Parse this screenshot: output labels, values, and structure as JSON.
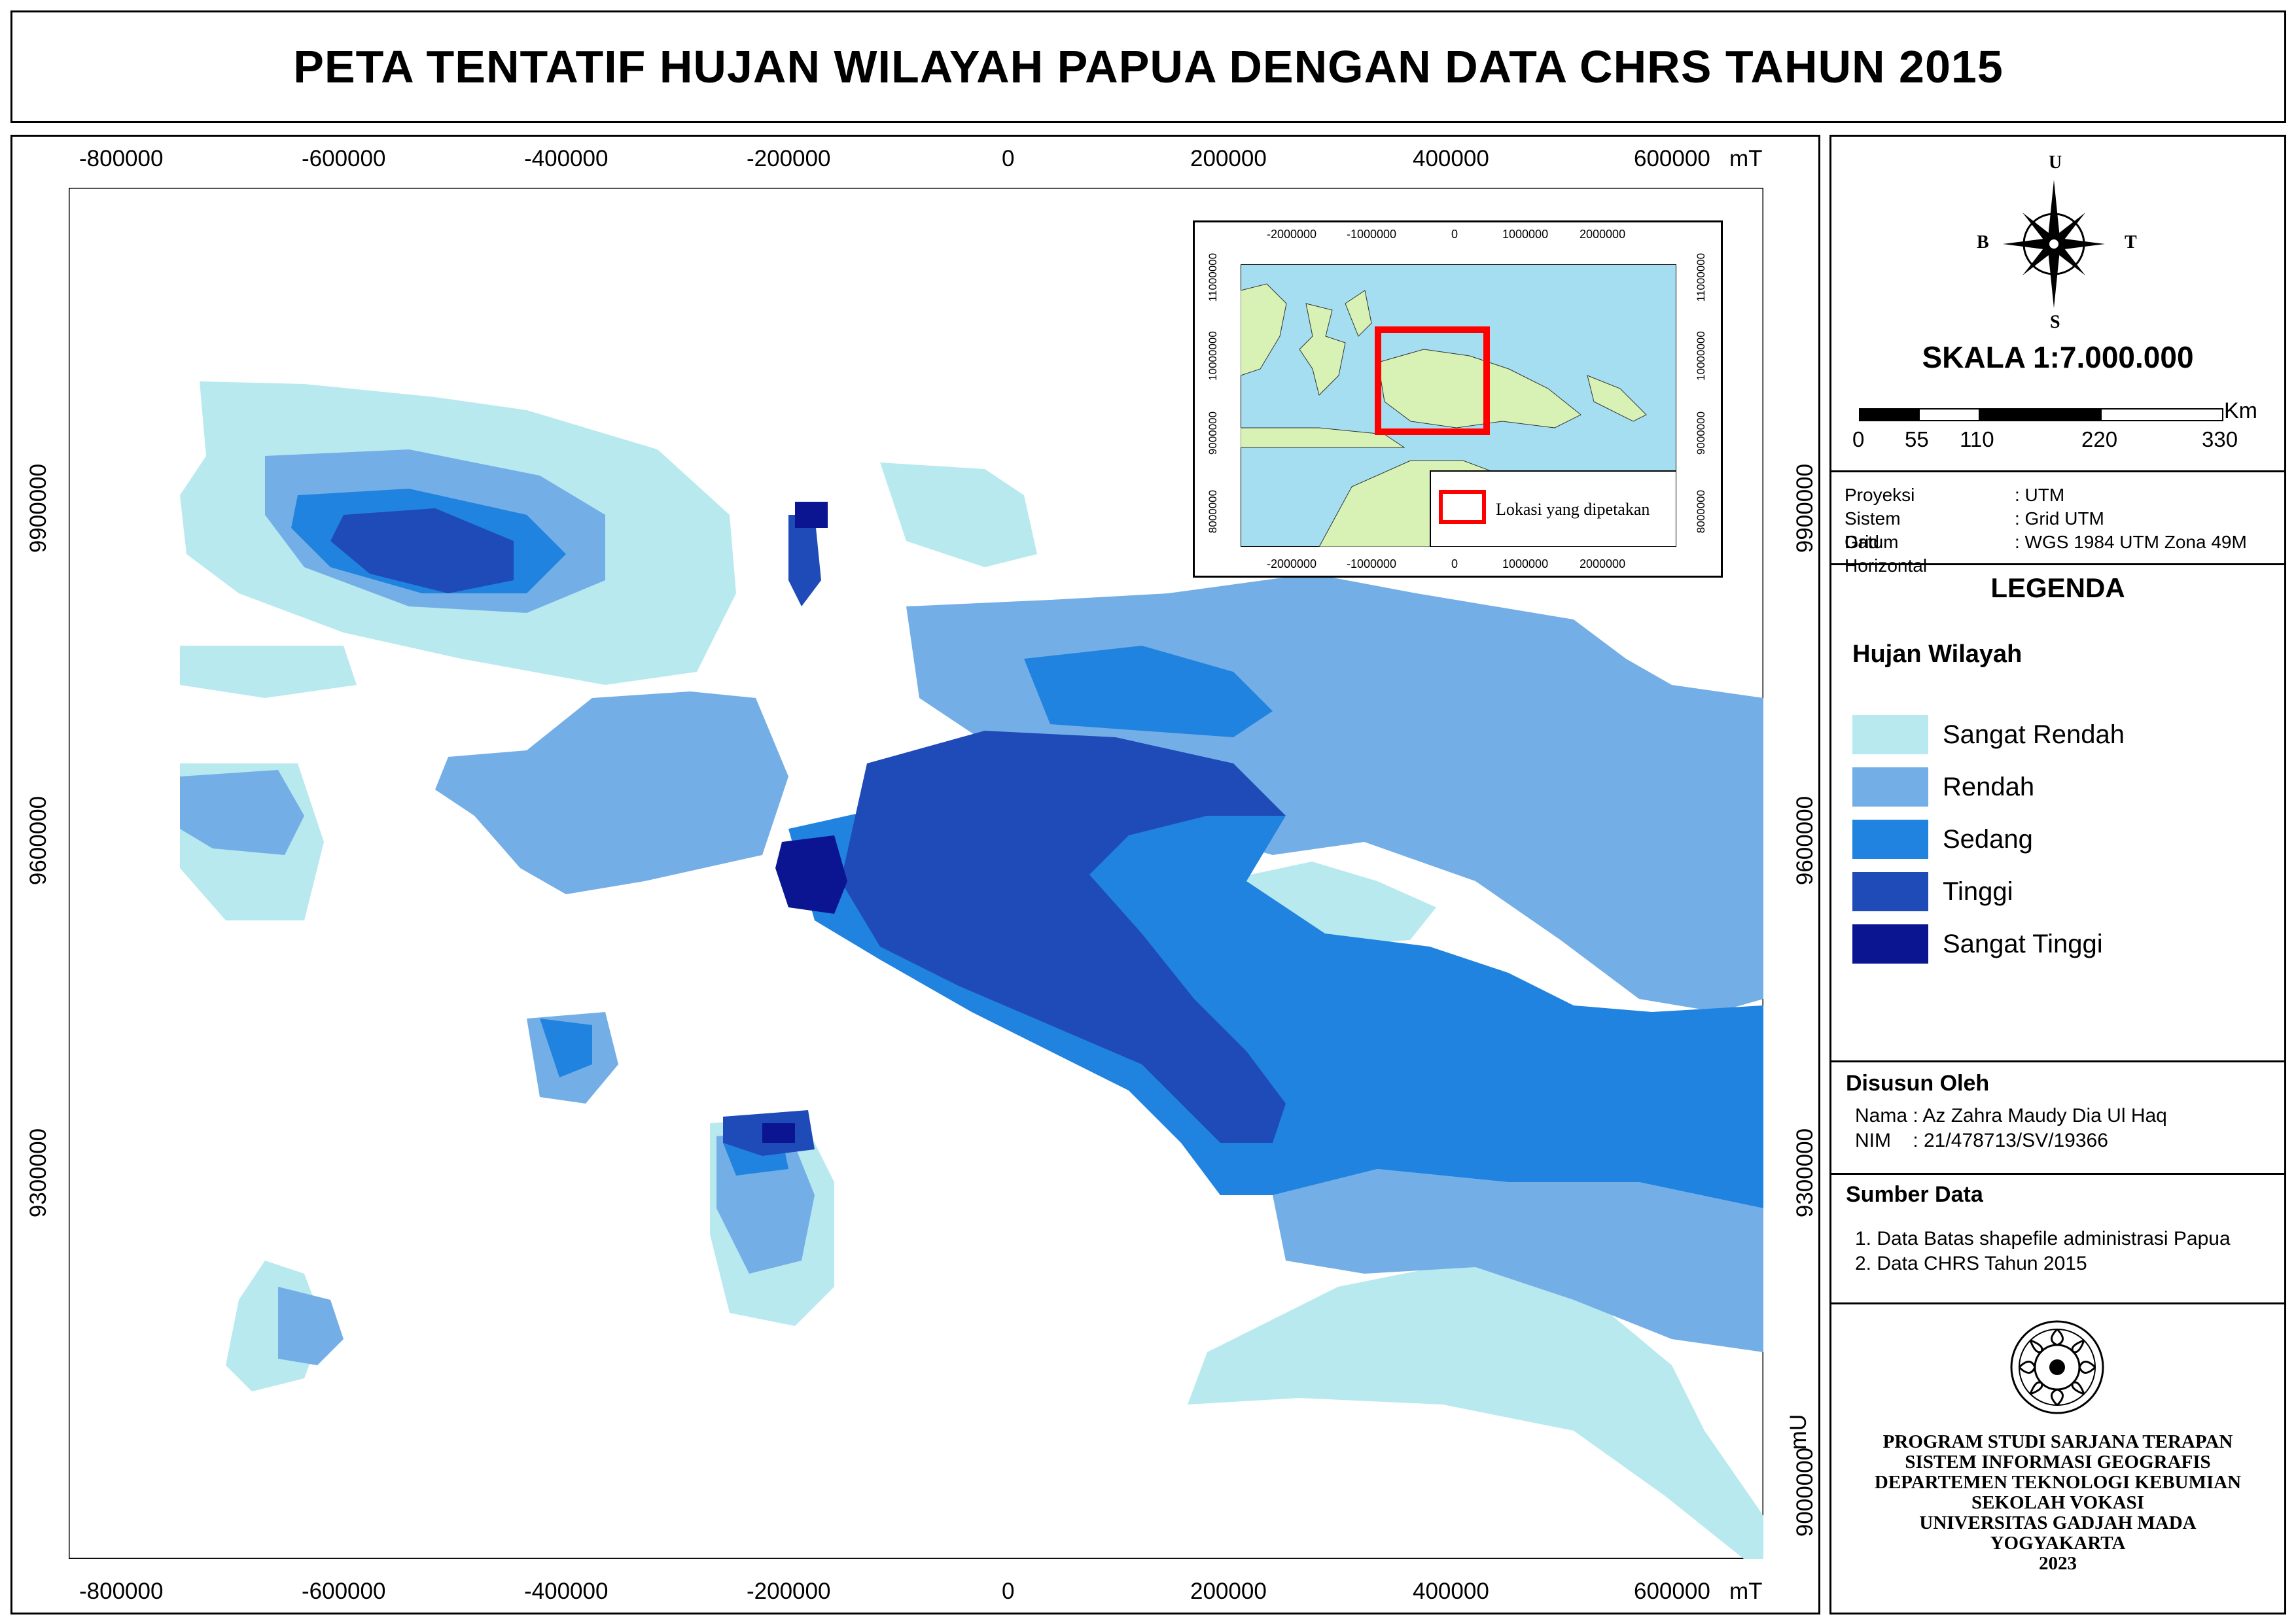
{
  "title": "PETA TENTATIF HUJAN WILAYAH PAPUA DENGAN DATA CHRS TAHUN 2015",
  "map": {
    "x_ticks": [
      "-800000",
      "-600000",
      "-400000",
      "-200000",
      "0",
      "200000",
      "400000",
      "600000"
    ],
    "x_unit": "mT",
    "y_ticks": [
      "9900000",
      "9600000",
      "9300000",
      "9000000"
    ],
    "y_unit": "mU",
    "colors": {
      "sangat_rendah": "#b7e9ef",
      "rendah": "#74aee6",
      "sedang": "#2083e0",
      "tinggi": "#1f4bb8",
      "sangat_tinggi": "#0b1591"
    }
  },
  "inset": {
    "x_ticks": [
      "-2000000",
      "-1000000",
      "0",
      "1000000",
      "2000000"
    ],
    "y_ticks": [
      "11000000",
      "10000000",
      "9000000",
      "8000000"
    ],
    "legend_label": "Lokasi yang dipetakan",
    "sea_color": "#a6def1",
    "land_color": "#d7f2b4",
    "frame_color": "#ff0000"
  },
  "compass": {
    "north": "U",
    "south": "S",
    "west": "B",
    "east": "T"
  },
  "scale": {
    "text": "SKALA 1:7.000.000",
    "unit": "Km",
    "labels": [
      "0",
      "55",
      "110",
      "220",
      "330"
    ]
  },
  "projection": {
    "rows": [
      {
        "key": "Proyeksi",
        "value": ": UTM"
      },
      {
        "key": "Sistem Grid",
        "value": ": Grid UTM"
      },
      {
        "key": "Datum Horizontal",
        "value": ": WGS 1984 UTM Zona 49M"
      }
    ]
  },
  "legend": {
    "heading": "LEGENDA",
    "subheading": "Hujan Wilayah",
    "items": [
      {
        "label": "Sangat Rendah",
        "color": "#b7e9ef"
      },
      {
        "label": "Rendah",
        "color": "#74aee6"
      },
      {
        "label": "Sedang",
        "color": "#2083e0"
      },
      {
        "label": "Tinggi",
        "color": "#1f4bb8"
      },
      {
        "label": "Sangat Tinggi",
        "color": "#0b1591"
      }
    ]
  },
  "author": {
    "heading": "Disusun Oleh",
    "name": "Nama : Az Zahra Maudy Dia Ul Haq",
    "nim": "NIM    : 21/478713/SV/19366"
  },
  "source": {
    "heading": "Sumber Data",
    "items": [
      "1. Data Batas shapefile administrasi Papua",
      "2. Data CHRS Tahun 2015"
    ]
  },
  "footer": {
    "lines": [
      "PROGRAM STUDI SARJANA TERAPAN",
      "SISTEM INFORMASI GEOGRAFIS",
      "DEPARTEMEN TEKNOLOGI KEBUMIAN",
      "SEKOLAH VOKASI",
      "UNIVERSITAS GADJAH MADA",
      "YOGYAKARTA",
      "2023"
    ]
  }
}
